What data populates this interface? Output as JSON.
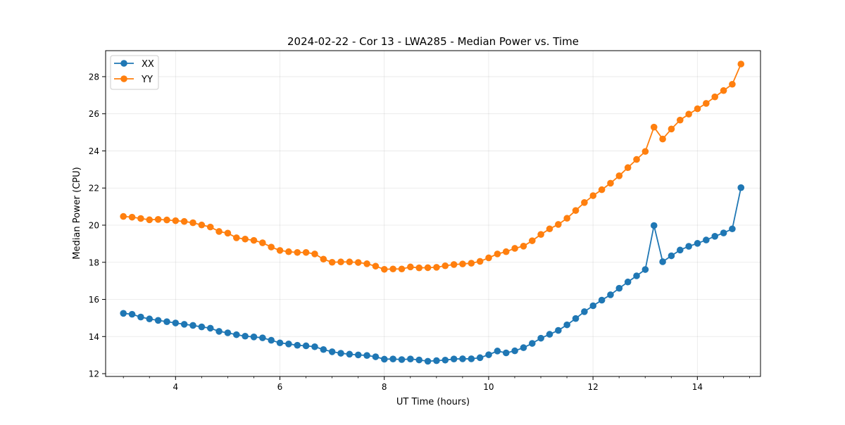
{
  "chart_data": {
    "type": "line",
    "title": "2024-02-22 - Cor 13 - LWA285 - Median Power vs. Time",
    "xlabel": "UT Time (hours)",
    "ylabel": "Median Power (CPU)",
    "xlim": [
      2.66,
      15.21
    ],
    "ylim": [
      11.85,
      29.4
    ],
    "xticks": [
      4,
      6,
      8,
      10,
      12,
      14
    ],
    "xtick_labels": [
      "4",
      "6",
      "8",
      "10",
      "12",
      "14"
    ],
    "xminor_step": 0.5,
    "yticks": [
      12,
      14,
      16,
      18,
      20,
      22,
      24,
      26,
      28
    ],
    "ytick_labels": [
      "12",
      "14",
      "16",
      "18",
      "20",
      "22",
      "24",
      "26",
      "28"
    ],
    "grid": true,
    "legend_position": "upper-left",
    "x_start": 3.0,
    "x_step": 0.1667,
    "series": [
      {
        "name": "XX",
        "color": "#1f77b4",
        "marker": "circle",
        "values": [
          15.25,
          15.2,
          15.05,
          14.95,
          14.87,
          14.8,
          14.73,
          14.66,
          14.6,
          14.52,
          14.45,
          14.28,
          14.2,
          14.1,
          14.02,
          13.98,
          13.93,
          13.8,
          13.66,
          13.6,
          13.53,
          13.5,
          13.45,
          13.3,
          13.18,
          13.1,
          13.05,
          13.01,
          12.98,
          12.91,
          12.78,
          12.79,
          12.76,
          12.79,
          12.74,
          12.67,
          12.7,
          12.73,
          12.79,
          12.8,
          12.8,
          12.86,
          13.02,
          13.22,
          13.12,
          13.23,
          13.4,
          13.63,
          13.91,
          14.12,
          14.33,
          14.63,
          14.97,
          15.34,
          15.66,
          15.96,
          16.25,
          16.6,
          16.94,
          17.27,
          17.61,
          19.98,
          18.03,
          18.35,
          18.66,
          18.86,
          19.02,
          19.2,
          19.4,
          19.58,
          19.8,
          22.02
        ]
      },
      {
        "name": "YY",
        "color": "#ff7f0e",
        "marker": "circle",
        "values": [
          20.47,
          20.43,
          20.36,
          20.29,
          20.31,
          20.28,
          20.24,
          20.2,
          20.13,
          20.01,
          19.9,
          19.66,
          19.57,
          19.32,
          19.25,
          19.18,
          19.05,
          18.82,
          18.64,
          18.57,
          18.53,
          18.53,
          18.45,
          18.17,
          18.0,
          18.02,
          18.02,
          17.99,
          17.92,
          17.79,
          17.62,
          17.64,
          17.64,
          17.75,
          17.7,
          17.71,
          17.73,
          17.81,
          17.88,
          17.91,
          17.95,
          18.05,
          18.24,
          18.45,
          18.57,
          18.75,
          18.87,
          19.16,
          19.5,
          19.8,
          20.04,
          20.37,
          20.79,
          21.22,
          21.59,
          21.91,
          22.26,
          22.66,
          23.1,
          23.54,
          23.97,
          25.28,
          24.64,
          25.18,
          25.66,
          25.98,
          26.27,
          26.56,
          26.91,
          27.25,
          27.59,
          28.68
        ]
      }
    ]
  }
}
